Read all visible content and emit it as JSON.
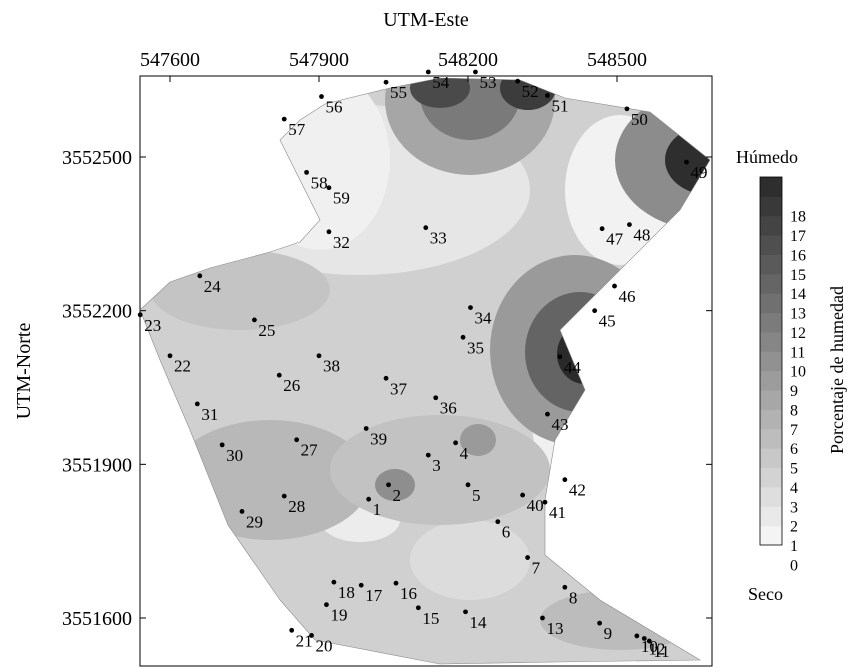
{
  "axes": {
    "x_title": "UTM-Este",
    "y_title": "UTM-Norte",
    "x_ticks": [
      "547600",
      "547900",
      "548200",
      "548500"
    ],
    "y_ticks": [
      "3552500",
      "3552200",
      "3551900",
      "3551600"
    ]
  },
  "colorbar": {
    "title": "Porcentaje de humedad",
    "top_label": "Húmedo",
    "bottom_label": "Seco",
    "ticks": [
      "0",
      "1",
      "2",
      "3",
      "4",
      "5",
      "6",
      "7",
      "8",
      "9",
      "10",
      "11",
      "12",
      "13",
      "14",
      "15",
      "16",
      "17",
      "18"
    ],
    "levels": [
      "#f4f4f4",
      "#e9e9e9",
      "#dedede",
      "#d3d3d3",
      "#c8c8c8",
      "#bdbdbd",
      "#b2b2b2",
      "#a7a7a7",
      "#9c9c9c",
      "#919191",
      "#868686",
      "#7b7b7b",
      "#707070",
      "#656565",
      "#5a5a5a",
      "#4f4f4f",
      "#444444",
      "#393939",
      "#2e2e2e"
    ]
  },
  "colors": {
    "boundary_fill": "#cfcfcf",
    "dry": "#f2f2f2",
    "wet": "#1e1e1e"
  },
  "sample_points": [
    {
      "id": "1",
      "label": "1",
      "e": 548000,
      "n": 3551832
    },
    {
      "id": "2",
      "label": "2",
      "e": 548040,
      "n": 3551860
    },
    {
      "id": "3",
      "label": "3",
      "e": 548120,
      "n": 3551918
    },
    {
      "id": "4",
      "label": "4",
      "e": 548175,
      "n": 3551942
    },
    {
      "id": "5",
      "label": "5",
      "e": 548200,
      "n": 3551860
    },
    {
      "id": "6",
      "label": "6",
      "e": 548260,
      "n": 3551788
    },
    {
      "id": "7",
      "label": "7",
      "e": 548320,
      "n": 3551718
    },
    {
      "id": "8",
      "label": "8",
      "e": 548395,
      "n": 3551660
    },
    {
      "id": "9",
      "label": "9",
      "e": 548465,
      "n": 3551590
    },
    {
      "id": "10",
      "label": "10",
      "e": 548540,
      "n": 3551565
    },
    {
      "id": "11",
      "label": "11",
      "e": 548565,
      "n": 3551555
    },
    {
      "id": "12",
      "label": "12",
      "e": 548555,
      "n": 3551560
    },
    {
      "id": "13",
      "label": "13",
      "e": 548350,
      "n": 3551600
    },
    {
      "id": "14",
      "label": "14",
      "e": 548195,
      "n": 3551612
    },
    {
      "id": "15",
      "label": "15",
      "e": 548100,
      "n": 3551620
    },
    {
      "id": "16",
      "label": "16",
      "e": 548055,
      "n": 3551668
    },
    {
      "id": "17",
      "label": "17",
      "e": 547985,
      "n": 3551664
    },
    {
      "id": "18",
      "label": "18",
      "e": 547930,
      "n": 3551670
    },
    {
      "id": "19",
      "label": "19",
      "e": 547915,
      "n": 3551626
    },
    {
      "id": "20",
      "label": "20",
      "e": 547885,
      "n": 3551566
    },
    {
      "id": "21",
      "label": "21",
      "e": 547845,
      "n": 3551576
    },
    {
      "id": "22",
      "label": "22",
      "e": 547600,
      "n": 3552112
    },
    {
      "id": "23",
      "label": "23",
      "e": 547540,
      "n": 3552192
    },
    {
      "id": "24",
      "label": "24",
      "e": 547660,
      "n": 3552268
    },
    {
      "id": "25",
      "label": "25",
      "e": 547770,
      "n": 3552182
    },
    {
      "id": "26",
      "label": "26",
      "e": 547820,
      "n": 3552074
    },
    {
      "id": "27",
      "label": "27",
      "e": 547855,
      "n": 3551948
    },
    {
      "id": "28",
      "label": "28",
      "e": 547830,
      "n": 3551838
    },
    {
      "id": "29",
      "label": "29",
      "e": 547745,
      "n": 3551808
    },
    {
      "id": "30",
      "label": "30",
      "e": 547705,
      "n": 3551938
    },
    {
      "id": "31",
      "label": "31",
      "e": 547655,
      "n": 3552018
    },
    {
      "id": "32",
      "label": "32",
      "e": 547920,
      "n": 3552354
    },
    {
      "id": "33",
      "label": "33",
      "e": 548115,
      "n": 3552362
    },
    {
      "id": "34",
      "label": "34",
      "e": 548205,
      "n": 3552206
    },
    {
      "id": "35",
      "label": "35",
      "e": 548190,
      "n": 3552148
    },
    {
      "id": "36",
      "label": "36",
      "e": 548135,
      "n": 3552030
    },
    {
      "id": "37",
      "label": "37",
      "e": 548035,
      "n": 3552068
    },
    {
      "id": "38",
      "label": "38",
      "e": 547900,
      "n": 3552112
    },
    {
      "id": "39",
      "label": "39",
      "e": 547995,
      "n": 3551970
    },
    {
      "id": "40",
      "label": "40",
      "e": 548310,
      "n": 3551840
    },
    {
      "id": "41",
      "label": "41",
      "e": 548355,
      "n": 3551826
    },
    {
      "id": "42",
      "label": "42",
      "e": 548395,
      "n": 3551870
    },
    {
      "id": "43",
      "label": "43",
      "e": 548360,
      "n": 3551998
    },
    {
      "id": "44",
      "label": "44",
      "e": 548385,
      "n": 3552110
    },
    {
      "id": "45",
      "label": "45",
      "e": 548455,
      "n": 3552200
    },
    {
      "id": "46",
      "label": "46",
      "e": 548495,
      "n": 3552248
    },
    {
      "id": "47",
      "label": "47",
      "e": 548470,
      "n": 3552360
    },
    {
      "id": "48",
      "label": "48",
      "e": 548525,
      "n": 3552368
    },
    {
      "id": "49",
      "label": "49",
      "e": 548640,
      "n": 3552490
    },
    {
      "id": "50",
      "label": "50",
      "e": 548520,
      "n": 3552594
    },
    {
      "id": "51",
      "label": "51",
      "e": 548360,
      "n": 3552620
    },
    {
      "id": "52",
      "label": "52",
      "e": 548300,
      "n": 3552648
    },
    {
      "id": "53",
      "label": "53",
      "e": 548215,
      "n": 3552666
    },
    {
      "id": "54",
      "label": "54",
      "e": 548120,
      "n": 3552666
    },
    {
      "id": "55",
      "label": "55",
      "e": 548035,
      "n": 3552646
    },
    {
      "id": "56",
      "label": "56",
      "e": 547905,
      "n": 3552618
    },
    {
      "id": "57",
      "label": "57",
      "e": 547830,
      "n": 3552574
    },
    {
      "id": "58",
      "label": "58",
      "e": 547875,
      "n": 3552470
    },
    {
      "id": "59",
      "label": "59",
      "e": 547920,
      "n": 3552440
    }
  ]
}
